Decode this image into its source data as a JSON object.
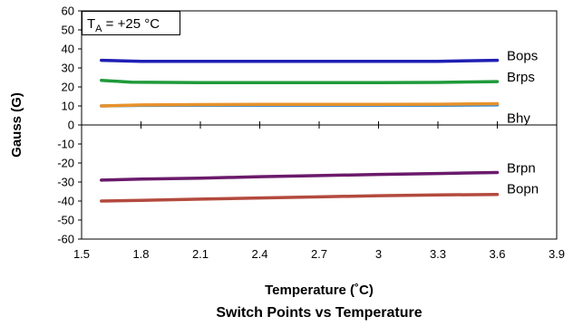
{
  "chart_data": {
    "type": "line",
    "title": "Switch Points vs Temperature",
    "xlabel": "Temperature (˚C)",
    "ylabel": "Gauss (G)",
    "xlim": [
      1.5,
      3.9
    ],
    "ylim": [
      -60,
      60
    ],
    "x_ticks": [
      "1.5",
      "1.8",
      "2.1",
      "2.4",
      "2.7",
      "3",
      "3.3",
      "3.6",
      "3.9"
    ],
    "y_ticks": [
      "60",
      "50",
      "40",
      "30",
      "20",
      "10",
      "0",
      "-10",
      "-20",
      "-30",
      "-40",
      "-50",
      "-60"
    ],
    "grid": false,
    "annotation": {
      "main": "T",
      "sub": "A",
      "rest": " = +25 °C"
    },
    "series": [
      {
        "name": "Bops",
        "color": "#1f1fb4",
        "x": [
          1.6,
          1.8,
          2.1,
          2.4,
          2.7,
          3.0,
          3.3,
          3.6
        ],
        "y": [
          34,
          33.5,
          33.5,
          33.5,
          33.5,
          33.5,
          33.5,
          34
        ]
      },
      {
        "name": "Brps",
        "color": "#1f9a3a",
        "x": [
          1.6,
          1.75,
          2.1,
          2.4,
          2.7,
          3.0,
          3.3,
          3.6
        ],
        "y": [
          23.5,
          22.5,
          22.3,
          22.3,
          22.3,
          22.3,
          22.4,
          22.8
        ]
      },
      {
        "name": "Bhy",
        "color": "#3c8fd0",
        "x": [
          1.6,
          1.8,
          2.1,
          2.4,
          2.7,
          3.0,
          3.3,
          3.6
        ],
        "y": [
          10,
          10.3,
          10.4,
          10.4,
          10.4,
          10.4,
          10.4,
          10.5
        ]
      },
      {
        "name": "",
        "color": "#e8922b",
        "x": [
          1.6,
          1.8,
          2.1,
          2.4,
          2.7,
          3.0,
          3.3,
          3.6
        ],
        "y": [
          10,
          10.5,
          10.7,
          10.8,
          10.8,
          10.8,
          10.9,
          11.2
        ]
      },
      {
        "name": "Brpn",
        "color": "#6b1a6b",
        "x": [
          1.6,
          1.8,
          2.1,
          2.4,
          2.7,
          3.0,
          3.3,
          3.6
        ],
        "y": [
          -29,
          -28.5,
          -28,
          -27.2,
          -26.6,
          -26,
          -25.5,
          -25
        ]
      },
      {
        "name": "Bopn",
        "color": "#b34a3e",
        "x": [
          1.6,
          1.8,
          2.1,
          2.4,
          2.7,
          3.0,
          3.3,
          3.6
        ],
        "y": [
          -40,
          -39.6,
          -39,
          -38.4,
          -37.8,
          -37.2,
          -36.8,
          -36.5
        ]
      }
    ],
    "series_label_positions": {
      "Bops": 36.5,
      "Brps": 25.2,
      "Bhy": 3.5,
      "Brpn": -22.5,
      "Bopn": -33.5
    }
  }
}
